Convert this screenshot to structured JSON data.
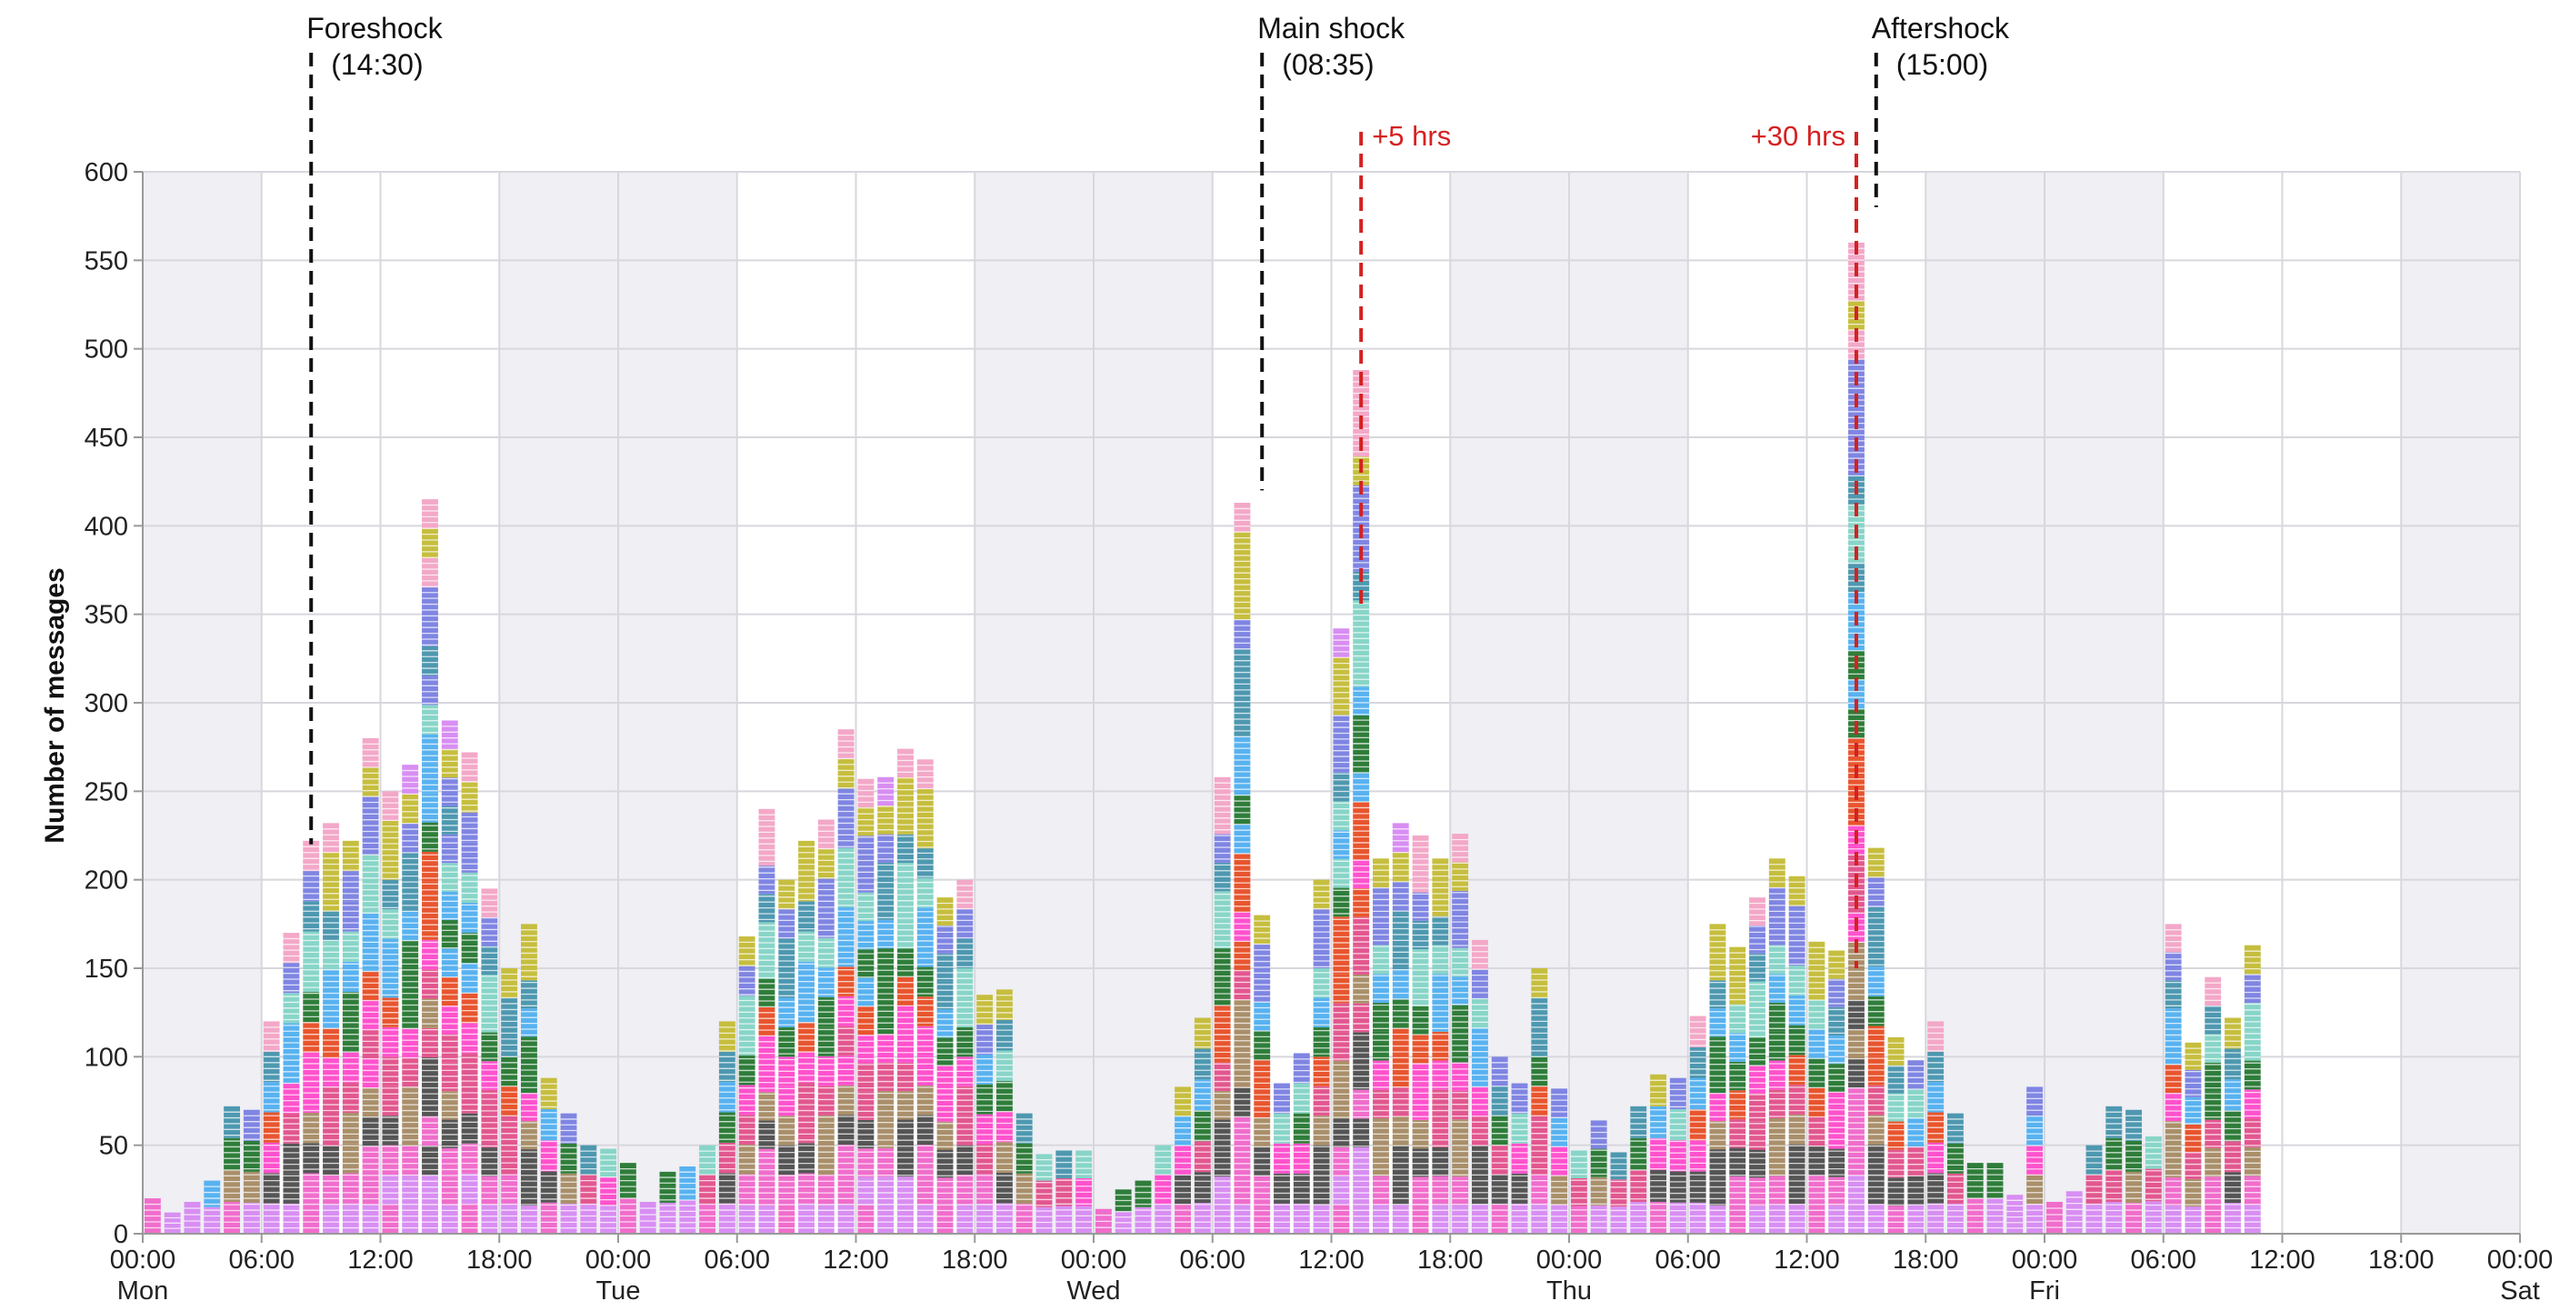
{
  "chart_data": {
    "type": "bar",
    "stacked": true,
    "ylabel": "Number of messages",
    "xlabel": "",
    "ylim": [
      0,
      600
    ],
    "yticks": [
      0,
      50,
      100,
      150,
      200,
      250,
      300,
      350,
      400,
      450,
      500,
      550,
      600
    ],
    "x_unit": "hours since Mon 00:00",
    "bin_hours": 1,
    "xlim": [
      0,
      120
    ],
    "xticks": [
      {
        "hour": 0,
        "label": "00:00",
        "day": "Mon"
      },
      {
        "hour": 6,
        "label": "06:00",
        "day": ""
      },
      {
        "hour": 12,
        "label": "12:00",
        "day": ""
      },
      {
        "hour": 18,
        "label": "18:00",
        "day": ""
      },
      {
        "hour": 24,
        "label": "00:00",
        "day": "Tue"
      },
      {
        "hour": 30,
        "label": "06:00",
        "day": ""
      },
      {
        "hour": 36,
        "label": "12:00",
        "day": ""
      },
      {
        "hour": 42,
        "label": "18:00",
        "day": ""
      },
      {
        "hour": 48,
        "label": "00:00",
        "day": "Wed"
      },
      {
        "hour": 54,
        "label": "06:00",
        "day": ""
      },
      {
        "hour": 60,
        "label": "12:00",
        "day": ""
      },
      {
        "hour": 66,
        "label": "18:00",
        "day": ""
      },
      {
        "hour": 72,
        "label": "00:00",
        "day": "Thu"
      },
      {
        "hour": 78,
        "label": "06:00",
        "day": ""
      },
      {
        "hour": 84,
        "label": "12:00",
        "day": ""
      },
      {
        "hour": 90,
        "label": "18:00",
        "day": ""
      },
      {
        "hour": 96,
        "label": "00:00",
        "day": "Fri"
      },
      {
        "hour": 102,
        "label": "06:00",
        "day": ""
      },
      {
        "hour": 108,
        "label": "12:00",
        "day": ""
      },
      {
        "hour": 114,
        "label": "18:00",
        "day": ""
      },
      {
        "hour": 120,
        "label": "00:00",
        "day": "Sat"
      }
    ],
    "night_bands": [
      [
        0,
        6
      ],
      [
        18,
        30
      ],
      [
        42,
        54
      ],
      [
        66,
        78
      ],
      [
        90,
        102
      ],
      [
        114,
        120
      ]
    ],
    "totals": [
      20,
      12,
      18,
      30,
      72,
      70,
      120,
      170,
      222,
      232,
      222,
      280,
      250,
      265,
      415,
      290,
      272,
      195,
      150,
      175,
      88,
      68,
      50,
      48,
      40,
      18,
      35,
      38,
      50,
      120,
      168,
      240,
      200,
      222,
      234,
      285,
      257,
      258,
      274,
      268,
      190,
      200,
      135,
      138,
      68,
      45,
      47,
      47,
      14,
      25,
      30,
      50,
      83,
      122,
      258,
      413,
      180,
      85,
      102,
      200,
      342,
      488,
      212,
      232,
      225,
      212,
      226,
      166,
      100,
      85,
      150,
      82,
      47,
      64,
      46,
      72,
      90,
      88,
      123,
      175,
      162,
      190,
      212,
      202,
      165,
      160,
      560,
      218,
      111,
      98,
      120,
      68,
      40,
      40,
      22,
      83,
      18,
      24,
      50,
      72,
      70,
      55,
      175,
      108,
      145,
      122,
      163
    ],
    "series_colors": [
      "#d88ef2",
      "#f06dcc",
      "#555555",
      "#a98f6a",
      "#e2578f",
      "#ff52cd",
      "#e8552e",
      "#2f7d3a",
      "#58b2f0",
      "#88d5c8",
      "#4e98b0",
      "#7f85e2",
      "#c6be3e",
      "#f3a8c8"
    ],
    "annotations": [
      {
        "hour": 8.5,
        "top_value": 220,
        "label_line1": "Foreshock",
        "label_line2": "(14:30)",
        "color": "#111111"
      },
      {
        "hour": 56.5,
        "top_value": 420,
        "label_line1": "Main shock",
        "label_line2": "(08:35)",
        "color": "#111111"
      },
      {
        "hour": 87.5,
        "top_value": 580,
        "label_line1": "Aftershock",
        "label_line2": "(15:00)",
        "color": "#111111"
      }
    ],
    "offset_markers": [
      {
        "hour": 61.5,
        "top_value": 355,
        "label": "+5 hrs",
        "label_side": "right",
        "color": "#d62020"
      },
      {
        "hour": 86.5,
        "top_value": 150,
        "label": "+30 hrs",
        "label_side": "left",
        "color": "#d62020"
      }
    ],
    "colors": {
      "night_band": "#efeff4",
      "grid": "#d7d7dd",
      "axis": "#999999"
    }
  }
}
